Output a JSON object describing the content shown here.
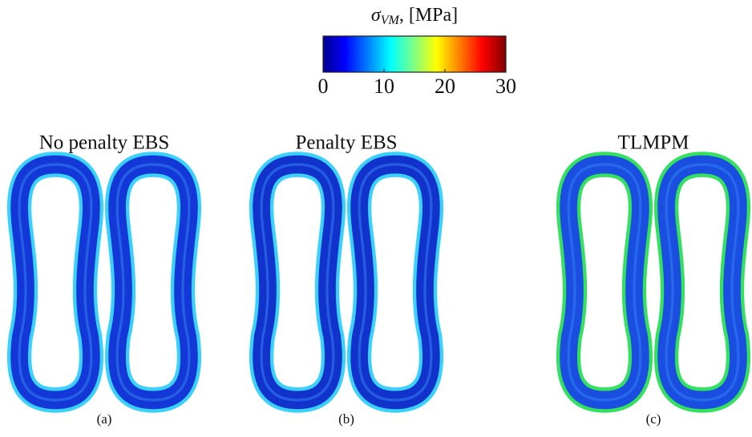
{
  "colorbar": {
    "label_symbol": "σ",
    "label_subscript": "VM",
    "label_unit": ", [MPa]",
    "lim": [
      0,
      30
    ],
    "ticks": [
      0,
      10,
      20,
      30
    ]
  },
  "panels": [
    {
      "title": "No penalty EBS",
      "caption": "(a)"
    },
    {
      "title": "Penalty EBS",
      "caption": "(b)"
    },
    {
      "title": "TLMPM",
      "caption": "(c)"
    }
  ]
}
